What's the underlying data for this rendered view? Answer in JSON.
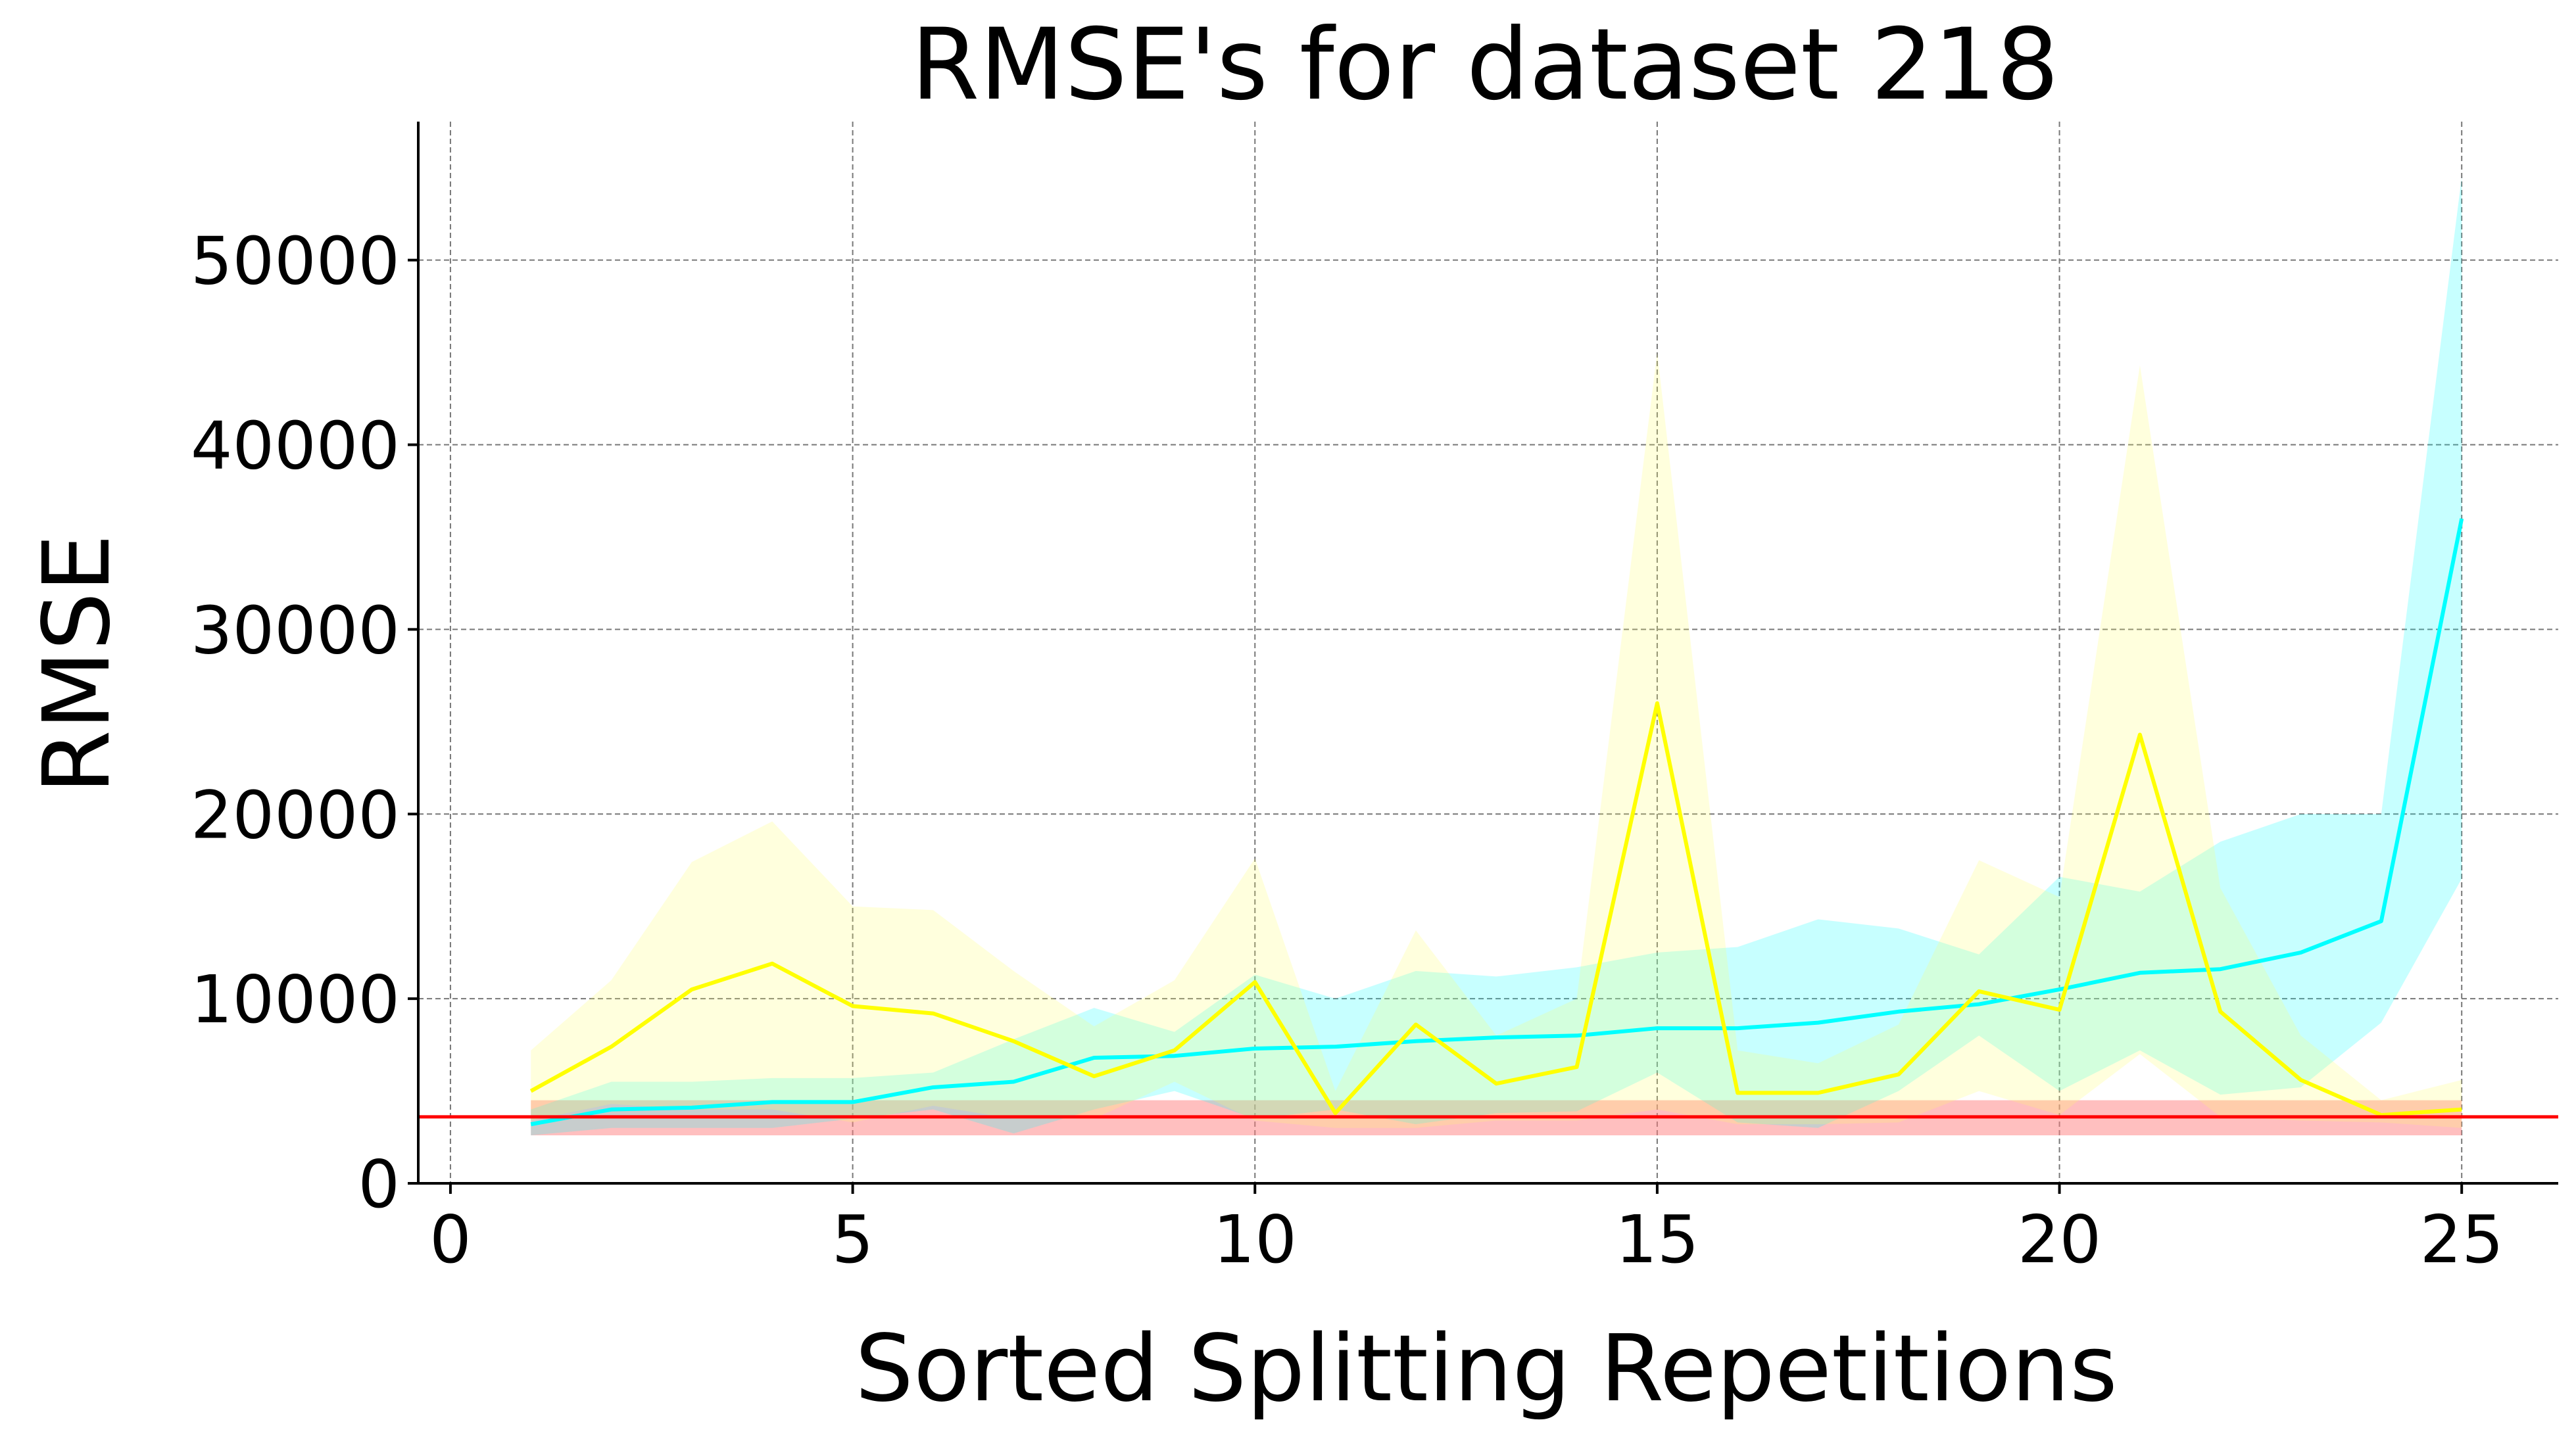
{
  "chart_data": {
    "type": "line",
    "title": "RMSE's for dataset 218",
    "xlabel": "Sorted Splitting Repetitions",
    "ylabel": "RMSE",
    "xlim": [
      -0.4,
      26.2
    ],
    "ylim": [
      0,
      57500
    ],
    "x_ticks": [
      0,
      5,
      10,
      15,
      20,
      25
    ],
    "y_ticks": [
      0,
      10000,
      20000,
      30000,
      40000,
      50000
    ],
    "grid": true,
    "x": [
      1,
      2,
      3,
      4,
      5,
      6,
      7,
      8,
      9,
      10,
      11,
      12,
      13,
      14,
      15,
      16,
      17,
      18,
      19,
      20,
      21,
      22,
      23,
      24,
      25
    ],
    "series": [
      {
        "color": "#00ffff",
        "band_color": "#00ffff",
        "values": [
          3200,
          4000,
          4100,
          4400,
          4400,
          5200,
          5500,
          6800,
          6900,
          7300,
          7400,
          7700,
          7900,
          8000,
          8400,
          8400,
          8700,
          9300,
          9700,
          10500,
          11400,
          11600,
          12500,
          14200,
          36000
        ],
        "lower": [
          2600,
          3000,
          3000,
          3000,
          3500,
          4000,
          2700,
          4000,
          5000,
          3500,
          4000,
          3200,
          3800,
          3900,
          6000,
          3300,
          3000,
          5000,
          8000,
          5000,
          7200,
          4800,
          5200,
          8700,
          16500
        ],
        "upper": [
          4000,
          5500,
          5500,
          5700,
          5700,
          6000,
          7800,
          9500,
          8200,
          11300,
          10000,
          11500,
          11200,
          11700,
          12500,
          12800,
          14300,
          13800,
          12400,
          16600,
          15800,
          18500,
          20000,
          20000,
          54500
        ]
      },
      {
        "color": "#ffff00",
        "band_color": "#ffff66",
        "values": [
          5000,
          7400,
          10500,
          11900,
          9600,
          9200,
          7700,
          5800,
          7200,
          10900,
          3800,
          8600,
          5400,
          6300,
          26000,
          4900,
          4900,
          5900,
          10400,
          9400,
          24300,
          9300,
          5600,
          3700,
          4000
        ],
        "lower": [
          3400,
          4300,
          4000,
          4000,
          3300,
          4200,
          3500,
          3500,
          5500,
          3400,
          3000,
          3000,
          3400,
          3400,
          4000,
          3200,
          3200,
          3300,
          5000,
          3700,
          7000,
          3600,
          3400,
          3300,
          3000
        ],
        "upper": [
          7200,
          11000,
          17400,
          19600,
          15000,
          14800,
          11500,
          8500,
          11000,
          17600,
          5000,
          13700,
          8000,
          10000,
          45000,
          7200,
          6500,
          8600,
          17500,
          15500,
          44300,
          16000,
          8000,
          4500,
          5600
        ]
      }
    ],
    "baseline": {
      "color": "#ff0000",
      "band_color": "#ff8080",
      "value": 3600,
      "lower": 2600,
      "upper": 4500
    }
  }
}
